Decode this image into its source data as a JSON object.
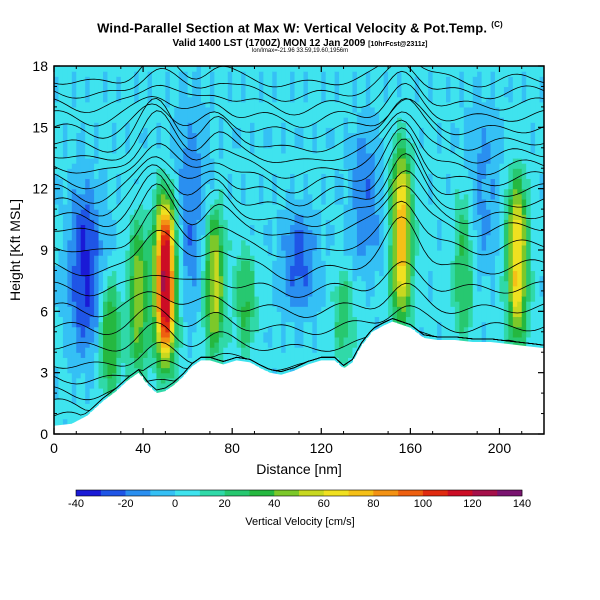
{
  "header": {
    "title": "Wind-Parallel Section at Max W: Vertical Velocity & Pot.Temp.",
    "title_mark": "(C)",
    "subtitle": "Valid 1400 LST (1700Z) MON 12 Jan 2009",
    "subtitle_note": "[10hrFcst@2311z]",
    "subtitle2": "lon/lmax=-21.96 33.59,19.60,1956m"
  },
  "colorbar": {
    "label": "Vertical Velocity [cm/s]",
    "ticks": [
      "-40",
      "-20",
      "0",
      "20",
      "40",
      "60",
      "80",
      "100",
      "120",
      "140"
    ],
    "colors": [
      "#1a1ad6",
      "#1f55e6",
      "#2a8ff0",
      "#35c0f5",
      "#3fe3ee",
      "#30d9a8",
      "#27c870",
      "#25b840",
      "#7cc82a",
      "#c8d820",
      "#f0e020",
      "#f5c017",
      "#f39214",
      "#ee6010",
      "#e02b10",
      "#cc0d25",
      "#a5104a",
      "#7a1470"
    ],
    "range": [
      -40,
      140
    ]
  },
  "chart_data": {
    "type": "heatmap",
    "xlabel": "Distance [nm]",
    "ylabel": "Height [Kft MSL]",
    "xlim": [
      0,
      220
    ],
    "ylim": [
      0,
      18
    ],
    "x_ticks": [
      "0",
      "40",
      "80",
      "120",
      "160",
      "200"
    ],
    "y_ticks": [
      "0",
      "3",
      "6",
      "9",
      "12",
      "15",
      "18"
    ],
    "x_tick_values": [
      0,
      40,
      80,
      120,
      160,
      200
    ],
    "y_tick_values": [
      0,
      3,
      6,
      9,
      12,
      15,
      18
    ],
    "terrain_kft": [
      [
        0,
        0.4
      ],
      [
        8,
        0.5
      ],
      [
        15,
        0.9
      ],
      [
        22,
        1.6
      ],
      [
        28,
        2.1
      ],
      [
        33,
        2.6
      ],
      [
        38,
        3.0
      ],
      [
        42,
        2.4
      ],
      [
        46,
        2.0
      ],
      [
        50,
        2.1
      ],
      [
        54,
        2.4
      ],
      [
        58,
        2.8
      ],
      [
        62,
        3.3
      ],
      [
        66,
        3.6
      ],
      [
        70,
        3.6
      ],
      [
        76,
        3.4
      ],
      [
        82,
        3.6
      ],
      [
        88,
        3.5
      ],
      [
        93,
        3.2
      ],
      [
        97,
        3.0
      ],
      [
        102,
        2.9
      ],
      [
        108,
        3.1
      ],
      [
        114,
        3.4
      ],
      [
        120,
        3.6
      ],
      [
        126,
        3.6
      ],
      [
        130,
        3.2
      ],
      [
        134,
        3.5
      ],
      [
        138,
        4.3
      ],
      [
        143,
        5.0
      ],
      [
        148,
        5.3
      ],
      [
        152,
        5.5
      ],
      [
        160,
        5.2
      ],
      [
        166,
        4.7
      ],
      [
        172,
        4.6
      ],
      [
        180,
        4.6
      ],
      [
        188,
        4.5
      ],
      [
        196,
        4.5
      ],
      [
        204,
        4.4
      ],
      [
        212,
        4.3
      ],
      [
        220,
        4.2
      ]
    ],
    "updraft_cores": [
      {
        "x": 50,
        "z_low": 3.5,
        "z_high": 11.5,
        "w_max": 125
      },
      {
        "x": 25,
        "z_low": 2.0,
        "z_high": 7.5,
        "w_max": 40
      },
      {
        "x": 38,
        "z_low": 3.0,
        "z_high": 10.5,
        "w_max": 45
      },
      {
        "x": 72,
        "z_low": 4.0,
        "z_high": 11.0,
        "w_max": 55
      },
      {
        "x": 86,
        "z_low": 4.0,
        "z_high": 9.0,
        "w_max": 30
      },
      {
        "x": 156,
        "z_low": 5.5,
        "z_high": 14.0,
        "w_max": 75
      },
      {
        "x": 208,
        "z_low": 4.5,
        "z_high": 12.5,
        "w_max": 70
      },
      {
        "x": 184,
        "z_low": 4.5,
        "z_high": 12.0,
        "w_max": 30
      },
      {
        "x": 130,
        "z_low": 3.5,
        "z_high": 8.0,
        "w_max": 25
      }
    ],
    "downdraft_cores": [
      {
        "x": 62,
        "z_low": 6.0,
        "z_high": 16.0,
        "w_min": -20
      },
      {
        "x": 110,
        "z_low": 6.0,
        "z_high": 11.0,
        "w_min": -25
      },
      {
        "x": 140,
        "z_low": 8.0,
        "z_high": 15.0,
        "w_min": -20
      },
      {
        "x": 14,
        "z_low": 4.0,
        "z_high": 12.0,
        "w_min": -35
      },
      {
        "x": 192,
        "z_low": 8.0,
        "z_high": 16.0,
        "w_min": -15
      }
    ],
    "isentrope_base_levels_kft": [
      0.9,
      1.5,
      2.1,
      2.8,
      3.5,
      4.4,
      5.3,
      6.2,
      7.2,
      8.3,
      9.3,
      10.2,
      10.8,
      11.4,
      12.0,
      12.6,
      13.2,
      13.8,
      14.4,
      15.0,
      15.6,
      16.2,
      16.8,
      17.4
    ]
  }
}
